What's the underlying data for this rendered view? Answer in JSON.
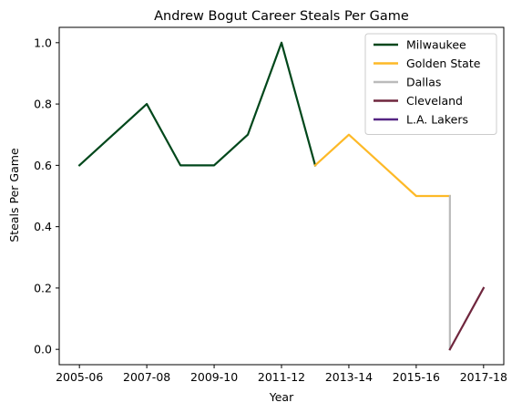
{
  "chart_data": {
    "type": "line",
    "title": "Andrew Bogut Career Steals Per Game",
    "xlabel": "Year",
    "ylabel": "Steals Per Game",
    "x_tick_labels": [
      "2005-06",
      "2007-08",
      "2009-10",
      "2011-12",
      "2013-14",
      "2015-16",
      "2017-18"
    ],
    "x_tick_positions": [
      0,
      2,
      4,
      6,
      8,
      10,
      12
    ],
    "xlim": [
      -0.6,
      12.6
    ],
    "ylim": [
      -0.05,
      1.05
    ],
    "y_ticks": [
      0.0,
      0.2,
      0.4,
      0.6,
      0.8,
      1.0
    ],
    "y_tick_labels": [
      "0.0",
      "0.2",
      "0.4",
      "0.6",
      "0.8",
      "1.0"
    ],
    "grid": false,
    "legend_placement": "top-right",
    "series": [
      {
        "name": "Milwaukee",
        "color": "#00471B",
        "x": [
          0,
          1,
          2,
          3,
          4,
          5,
          6,
          7
        ],
        "y": [
          0.6,
          0.7,
          0.8,
          0.6,
          0.6,
          0.7,
          1.0,
          0.6
        ]
      },
      {
        "name": "Golden State",
        "color": "#FDB927",
        "x": [
          7,
          8,
          9,
          10,
          11
        ],
        "y": [
          0.6,
          0.7,
          0.6,
          0.5,
          0.5
        ]
      },
      {
        "name": "Dallas",
        "color": "#BBBBBB",
        "x": [
          11,
          11
        ],
        "y": [
          0.5,
          0.0
        ]
      },
      {
        "name": "Cleveland",
        "color": "#6F263D",
        "x": [
          11,
          12
        ],
        "y": [
          0.0,
          0.2
        ]
      },
      {
        "name": "L.A. Lakers",
        "color": "#552583",
        "x": [],
        "y": []
      }
    ]
  }
}
